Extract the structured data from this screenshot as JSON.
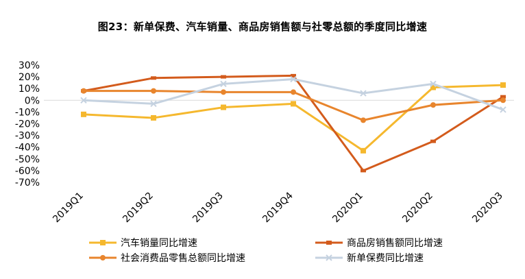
{
  "chart_data": {
    "type": "line",
    "title": "图23：新单保费、汽车销量、商品房销售额与社零总额的季度同比增速",
    "xlabel": "",
    "ylabel": "",
    "categories": [
      "2019Q1",
      "2019Q2",
      "2019Q3",
      "2019Q4",
      "2020Q1",
      "2020Q2",
      "2020Q3"
    ],
    "y_ticks": [
      "30%",
      "20%",
      "10%",
      "0%",
      "-10%",
      "-20%",
      "-30%",
      "-40%",
      "-50%",
      "-60%",
      "-70%"
    ],
    "ylim": [
      -70,
      30
    ],
    "y_unit": "%",
    "grid": false,
    "legend_position": "bottom",
    "series": [
      {
        "name": "汽车销量同比增速",
        "color": "#F5B82E",
        "marker": "square",
        "values": [
          -12,
          -15,
          -6,
          -3,
          -43,
          11,
          13
        ]
      },
      {
        "name": "商品房销售额同比增速",
        "color": "#D35B1C",
        "marker": "dash",
        "values": [
          8,
          19,
          20,
          21,
          -60,
          -35,
          3
        ]
      },
      {
        "name": "社会消费品零售总额同比增速",
        "color": "#E8852D",
        "marker": "circle",
        "values": [
          8,
          8,
          7,
          7,
          -17,
          -4,
          0
        ]
      },
      {
        "name": "新单保费同比增速",
        "color": "#C5D2E0",
        "marker": "cross",
        "values": [
          0,
          -3,
          14,
          18,
          6,
          14,
          -8
        ]
      }
    ]
  }
}
